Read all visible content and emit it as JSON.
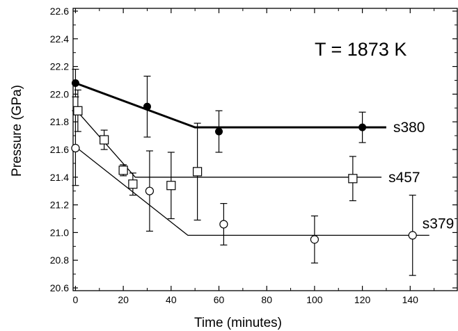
{
  "chart_data": {
    "type": "scatter",
    "xlabel": "Time (minutes)",
    "ylabel": "Pressure (GPa)",
    "xlim": [
      -1,
      160
    ],
    "ylim": [
      20.58,
      22.62
    ],
    "xticks": [
      0,
      20,
      40,
      60,
      80,
      100,
      120,
      140
    ],
    "yticks": [
      20.6,
      20.8,
      21.0,
      21.2,
      21.4,
      21.6,
      21.8,
      22.0,
      22.2,
      22.4,
      22.6
    ],
    "annotation": "T = 1873 K",
    "grid": false,
    "series": [
      {
        "name": "s380",
        "marker": "filled-circle",
        "points": [
          {
            "x": 0,
            "y": 22.08,
            "err": 0.1
          },
          {
            "x": 30,
            "y": 21.91,
            "err": 0.22
          },
          {
            "x": 60,
            "y": 21.73,
            "err": 0.15
          },
          {
            "x": 120,
            "y": 21.76,
            "err": 0.11
          }
        ],
        "fit_line": [
          [
            0,
            22.08
          ],
          [
            50,
            21.76
          ],
          [
            130,
            21.76
          ]
        ]
      },
      {
        "name": "s457",
        "marker": "open-square",
        "points": [
          {
            "x": 1,
            "y": 21.88,
            "err": 0.15
          },
          {
            "x": 12,
            "y": 21.67,
            "err": 0.07
          },
          {
            "x": 20,
            "y": 21.45,
            "err": 0.04
          },
          {
            "x": 24,
            "y": 21.35,
            "err": 0.08
          },
          {
            "x": 40,
            "y": 21.34,
            "err": 0.24
          },
          {
            "x": 51,
            "y": 21.44,
            "err": 0.35
          },
          {
            "x": 116,
            "y": 21.39,
            "err": 0.16
          }
        ],
        "fit_line": [
          [
            0,
            21.89
          ],
          [
            25,
            21.4
          ],
          [
            128,
            21.4
          ]
        ]
      },
      {
        "name": "s379",
        "marker": "open-circle",
        "points": [
          {
            "x": 0,
            "y": 21.61,
            "err": 0.27
          },
          {
            "x": 31,
            "y": 21.3,
            "err": 0.29
          },
          {
            "x": 62,
            "y": 21.06,
            "err": 0.15
          },
          {
            "x": 100,
            "y": 20.95,
            "err": 0.17
          },
          {
            "x": 141,
            "y": 20.98,
            "err": 0.29
          }
        ],
        "fit_line": [
          [
            0,
            21.62
          ],
          [
            47,
            20.98
          ],
          [
            148,
            20.98
          ]
        ]
      }
    ]
  }
}
